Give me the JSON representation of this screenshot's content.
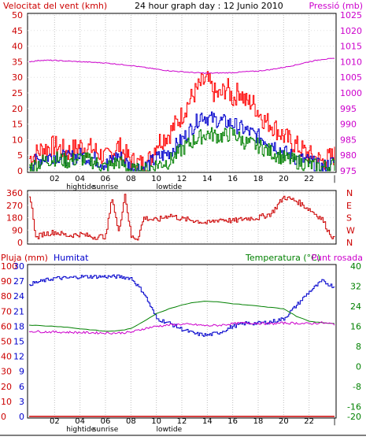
{
  "chart_data": [
    {
      "type": "line",
      "title": "24 hour graph day : 12 Junio 2010",
      "left_label": "Velocitat del vent (kmh)",
      "right_label": "Pressió (mb)",
      "y_left": {
        "ticks": [
          0,
          5,
          10,
          15,
          20,
          25,
          30,
          35,
          40,
          45,
          50
        ],
        "ylim": [
          0,
          50
        ]
      },
      "y_right": {
        "ticks": [
          975,
          980,
          985,
          990,
          995,
          1000,
          1005,
          1010,
          1015,
          1020,
          1025
        ],
        "ylim": [
          975,
          1025
        ]
      },
      "x_ticks": [
        "02",
        "04",
        "06",
        "08",
        "10",
        "12",
        "14",
        "16",
        "18",
        "20",
        "22"
      ],
      "x_marker": "|",
      "annotations": [
        "hightide",
        "sunrise",
        "lowtide"
      ],
      "grid": true,
      "series": [
        {
          "name": "",
          "color": "#ff0000",
          "axis": "left",
          "x": [
            0,
            1,
            2,
            3,
            4,
            5,
            6,
            7,
            8,
            9,
            9.5,
            10,
            11,
            12,
            12.5,
            13,
            13.5,
            14,
            14.5,
            15,
            15.5,
            16,
            16.5,
            17,
            17.5,
            18,
            18.5,
            19,
            20,
            21,
            22,
            23,
            24
          ],
          "y": [
            4,
            7,
            8,
            6,
            8,
            7,
            4,
            8,
            3,
            2,
            4,
            9,
            12,
            18,
            22,
            25,
            28,
            29,
            25,
            24,
            27,
            23,
            26,
            22,
            22,
            19,
            16,
            15,
            11,
            8,
            5,
            3,
            5
          ]
        },
        {
          "name": "",
          "color": "#0000cc",
          "axis": "left",
          "x": [
            0,
            1,
            2,
            3,
            4,
            5,
            6,
            7,
            8,
            9,
            10,
            11,
            12,
            13,
            13.5,
            14,
            15,
            16,
            17,
            18,
            19,
            20,
            21,
            22,
            23,
            24
          ],
          "y": [
            2,
            4,
            5,
            4,
            5,
            4,
            2,
            5,
            1,
            1,
            4,
            6,
            10,
            15,
            18,
            17,
            16,
            15,
            13,
            11,
            9,
            6,
            4,
            3,
            1,
            3
          ]
        },
        {
          "name": "",
          "color": "#008000",
          "axis": "left",
          "x": [
            0,
            1,
            2,
            3,
            4,
            5,
            6,
            7,
            8,
            9,
            10,
            11,
            12,
            13,
            14,
            15,
            16,
            17,
            18,
            19,
            20,
            21,
            22,
            23,
            24
          ],
          "y": [
            1,
            3,
            4,
            3,
            4,
            3,
            1,
            3,
            0,
            0,
            2,
            3,
            7,
            10,
            12,
            11,
            12,
            9,
            8,
            6,
            4,
            3,
            2,
            1,
            2
          ]
        },
        {
          "name": "",
          "color": "#cc00cc",
          "axis": "right",
          "x": [
            0,
            1,
            2,
            3,
            4,
            5,
            6,
            7,
            8,
            9,
            10,
            11,
            12,
            13,
            14,
            15,
            16,
            17,
            18,
            19,
            20,
            21,
            22,
            23,
            24
          ],
          "y": [
            1010,
            1010.5,
            1010.4,
            1010.2,
            1010,
            1009.8,
            1009.6,
            1009.2,
            1008.8,
            1008.2,
            1007.6,
            1007.1,
            1006.8,
            1006.5,
            1006.3,
            1006.4,
            1006.5,
            1006.8,
            1007.0,
            1007.5,
            1008.2,
            1009.0,
            1010.0,
            1010.8,
            1011.0
          ]
        }
      ]
    },
    {
      "type": "line",
      "y_left": {
        "ticks": [
          0,
          90,
          180,
          270,
          360
        ],
        "ylim": [
          0,
          360
        ]
      },
      "y_right": {
        "ticks": [
          "N",
          "E",
          "S",
          "W",
          "N"
        ]
      },
      "series": [
        {
          "name": "",
          "color": "#cc0000",
          "axis": "left",
          "x": [
            0,
            0.3,
            0.5,
            1,
            2,
            3,
            4,
            5,
            6,
            6.5,
            7,
            7.5,
            8,
            8.5,
            9,
            10,
            11,
            12,
            13,
            14,
            15,
            16,
            17,
            18,
            19,
            20,
            21,
            22,
            23,
            23.5,
            24
          ],
          "y": [
            350,
            180,
            30,
            60,
            75,
            50,
            60,
            40,
            45,
            330,
            70,
            350,
            40,
            30,
            180,
            160,
            200,
            170,
            160,
            140,
            170,
            155,
            175,
            180,
            210,
            330,
            300,
            240,
            170,
            80,
            20
          ]
        }
      ]
    },
    {
      "type": "line",
      "left_label": "Pluja (mm)",
      "left_series_label": "Humitat",
      "right_label": "Temperatura (°C)",
      "right_series_label": "Punt rosada",
      "y_left_pluja": {
        "ticks": [
          0,
          10,
          20,
          30,
          40,
          50,
          60,
          70,
          80,
          90,
          100
        ],
        "ylim": [
          0,
          100
        ]
      },
      "y_left_humitat": {
        "ticks": [
          0,
          3,
          6,
          9,
          12,
          15,
          18,
          21,
          24,
          27,
          30
        ],
        "ylim": [
          0,
          30
        ]
      },
      "y_right": {
        "ticks": [
          -20,
          -16,
          -12,
          -8,
          -4,
          0,
          4,
          8,
          12,
          16,
          20,
          24,
          28,
          32,
          36,
          40
        ],
        "ylim": [
          -20,
          40
        ]
      },
      "x_ticks": [
        "02",
        "04",
        "06",
        "08",
        "10",
        "12",
        "14",
        "16",
        "18",
        "20",
        "22"
      ],
      "x_marker": "|",
      "annotations": [
        "hightide",
        "sunrise",
        "lowtide"
      ],
      "series": [
        {
          "name": "Humitat",
          "color": "#0000cc",
          "axis": "pluja",
          "x": [
            0,
            1,
            2,
            3,
            4,
            5,
            6,
            7,
            8,
            9,
            10,
            11,
            12,
            13,
            14,
            15,
            16,
            17,
            18,
            19,
            20,
            21,
            22,
            23,
            24
          ],
          "y": [
            88,
            90,
            92,
            92,
            93,
            93,
            93,
            93,
            92,
            82,
            65,
            62,
            58,
            55,
            54,
            56,
            60,
            62,
            62,
            63,
            65,
            74,
            83,
            90,
            86
          ]
        },
        {
          "name": "Temperatura (°C)",
          "color": "#008000",
          "axis": "right",
          "x": [
            0,
            1,
            2,
            3,
            4,
            5,
            6,
            7,
            8,
            9,
            10,
            11,
            12,
            13,
            14,
            15,
            16,
            17,
            18,
            19,
            20,
            21,
            22,
            23,
            24
          ],
          "y": [
            16.5,
            16.2,
            16,
            15.6,
            15,
            14.5,
            14,
            14.2,
            15,
            18,
            21,
            23,
            24.5,
            25.6,
            26,
            25.6,
            25,
            24.5,
            24,
            23.5,
            23,
            20,
            18,
            17.5,
            17
          ]
        },
        {
          "name": "Punt rosada",
          "color": "#cc00cc",
          "axis": "right",
          "x": [
            0,
            1,
            2,
            3,
            4,
            5,
            6,
            7,
            8,
            9,
            10,
            11,
            12,
            13,
            14,
            15,
            16,
            17,
            18,
            19,
            20,
            21,
            22,
            23,
            24
          ],
          "y": [
            14,
            13.8,
            13.7,
            13.6,
            13.5,
            13.4,
            13.3,
            13.3,
            13.6,
            15,
            16,
            16.5,
            16.8,
            16.6,
            16.2,
            16.4,
            17,
            17.3,
            17.2,
            17,
            17.3,
            17.2,
            17.0,
            17.4,
            16.8
          ]
        },
        {
          "name": "Pluja (mm)",
          "color": "#cc0000",
          "axis": "pluja",
          "x": [
            0,
            24
          ],
          "y": [
            0,
            0
          ]
        }
      ]
    }
  ]
}
